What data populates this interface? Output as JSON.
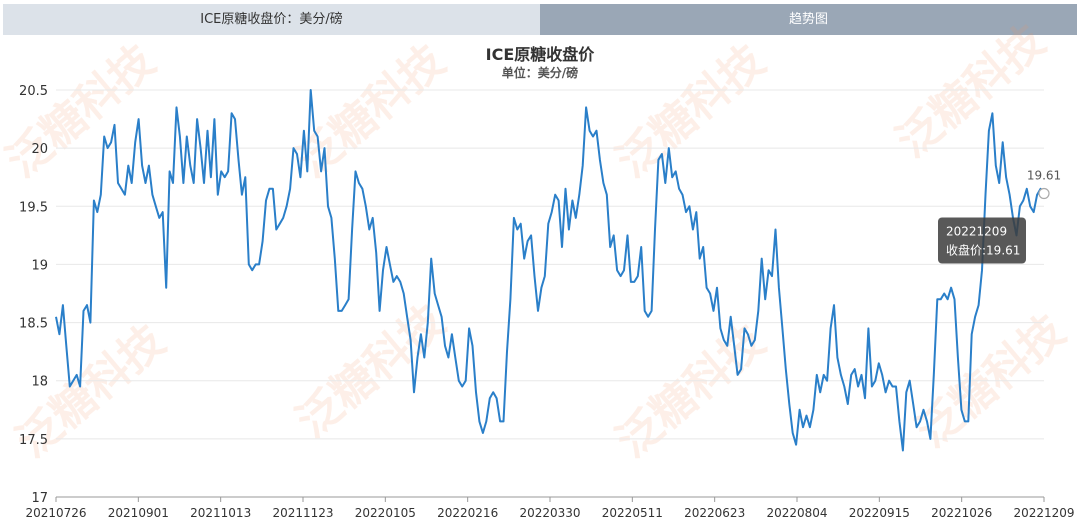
{
  "tabs": {
    "left_label": "ICE原糖收盘价：美分/磅",
    "right_label": "趋势图"
  },
  "watermark": "泛糖科技",
  "chart_data": {
    "type": "line",
    "title": "ICE原糖收盘价",
    "subtitle": "单位：美分/磅",
    "ylim": [
      17,
      20.5
    ],
    "yticks": [
      17,
      17.5,
      18,
      18.5,
      19,
      19.5,
      20,
      20.5
    ],
    "xtick_labels": [
      "20210726",
      "20210901",
      "20211013",
      "20211123",
      "20220105",
      "20220216",
      "20220330",
      "20220511",
      "20220623",
      "20220804",
      "20220915",
      "20221026",
      "20221209"
    ],
    "series": [
      {
        "color": "#2a7fc9",
        "values": [
          18.55,
          18.4,
          18.65,
          18.3,
          17.95,
          18.0,
          18.05,
          17.95,
          18.6,
          18.65,
          18.5,
          19.55,
          19.45,
          19.6,
          20.1,
          20.0,
          20.05,
          20.2,
          19.7,
          19.65,
          19.6,
          19.85,
          19.7,
          20.05,
          20.25,
          19.85,
          19.7,
          19.85,
          19.6,
          19.5,
          19.4,
          19.45,
          18.8,
          19.8,
          19.7,
          20.35,
          20.1,
          19.7,
          20.1,
          19.85,
          19.7,
          20.25,
          20.0,
          19.7,
          20.15,
          19.75,
          20.25,
          19.6,
          19.8,
          19.75,
          19.8,
          20.3,
          20.25,
          19.9,
          19.6,
          19.75,
          19.0,
          18.95,
          19.0,
          19.0,
          19.2,
          19.55,
          19.65,
          19.65,
          19.3,
          19.35,
          19.4,
          19.5,
          19.65,
          20.0,
          19.95,
          19.75,
          20.15,
          19.8,
          20.5,
          20.15,
          20.1,
          19.8,
          20.0,
          19.5,
          19.4,
          19.05,
          18.6,
          18.6,
          18.65,
          18.7,
          19.3,
          19.8,
          19.7,
          19.65,
          19.5,
          19.3,
          19.4,
          19.1,
          18.6,
          18.95,
          19.15,
          19.0,
          18.85,
          18.9,
          18.85,
          18.75,
          18.55,
          18.35,
          17.9,
          18.2,
          18.4,
          18.2,
          18.5,
          19.05,
          18.75,
          18.65,
          18.55,
          18.3,
          18.2,
          18.4,
          18.2,
          18.0,
          17.95,
          18.0,
          18.45,
          18.3,
          17.9,
          17.65,
          17.55,
          17.65,
          17.85,
          17.9,
          17.85,
          17.65,
          17.65,
          18.25,
          18.7,
          19.4,
          19.3,
          19.35,
          19.05,
          19.2,
          19.25,
          18.9,
          18.6,
          18.8,
          18.9,
          19.35,
          19.45,
          19.6,
          19.55,
          19.15,
          19.65,
          19.3,
          19.55,
          19.4,
          19.6,
          19.85,
          20.35,
          20.15,
          20.1,
          20.15,
          19.9,
          19.7,
          19.6,
          19.15,
          19.25,
          18.95,
          18.9,
          18.95,
          19.25,
          18.85,
          18.85,
          18.9,
          19.15,
          18.6,
          18.55,
          18.6,
          19.3,
          19.9,
          19.95,
          19.7,
          20.0,
          19.75,
          19.8,
          19.65,
          19.6,
          19.45,
          19.5,
          19.3,
          19.45,
          19.05,
          19.15,
          18.8,
          18.75,
          18.6,
          18.8,
          18.45,
          18.35,
          18.3,
          18.55,
          18.3,
          18.05,
          18.1,
          18.45,
          18.4,
          18.3,
          18.35,
          18.6,
          19.05,
          18.7,
          18.95,
          18.9,
          19.3,
          18.8,
          18.45,
          18.1,
          17.8,
          17.55,
          17.45,
          17.75,
          17.6,
          17.7,
          17.6,
          17.75,
          18.05,
          17.9,
          18.05,
          18.0,
          18.45,
          18.65,
          18.2,
          18.05,
          17.95,
          17.8,
          18.05,
          18.1,
          17.95,
          18.05,
          17.85,
          18.45,
          17.95,
          18.0,
          18.15,
          18.05,
          17.9,
          18.0,
          17.95,
          17.95,
          17.65,
          17.4,
          17.9,
          18.0,
          17.8,
          17.6,
          17.65,
          17.75,
          17.65,
          17.5,
          18.05,
          18.7,
          18.7,
          18.75,
          18.7,
          18.8,
          18.7,
          18.2,
          17.75,
          17.65,
          17.65,
          18.4,
          18.55,
          18.65,
          18.95,
          19.6,
          20.15,
          20.3,
          19.85,
          19.7,
          20.05,
          19.75,
          19.6,
          19.4,
          19.25,
          19.5,
          19.55,
          19.65,
          19.5,
          19.45,
          19.6,
          19.65,
          19.61
        ]
      }
    ],
    "tooltip": {
      "date": "20221209",
      "label": "收盘价:19.61",
      "end_value_label": "19.61"
    }
  }
}
